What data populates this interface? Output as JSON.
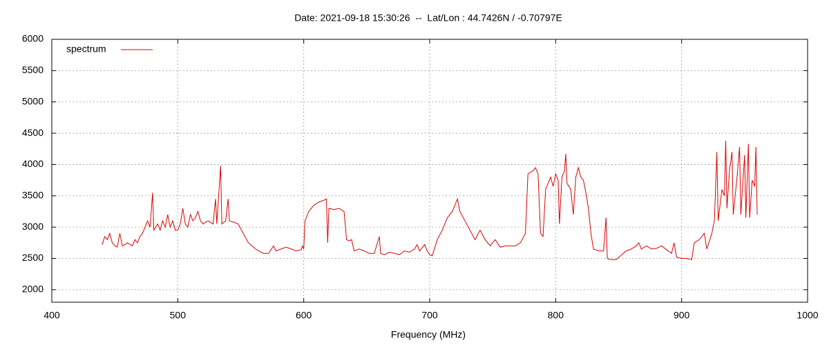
{
  "chart_data": {
    "type": "line",
    "title": "Date: 2021-09-18 15:30:26  --  Lat/Lon : 44.7426N / -0.70797E",
    "x_label": "Frequency (MHz)",
    "xlim": [
      400,
      1000
    ],
    "xticks": [
      400,
      500,
      600,
      700,
      800,
      900,
      1000
    ],
    "ylim": [
      1800,
      6000
    ],
    "yticks": [
      2000,
      2500,
      3000,
      3500,
      4000,
      4500,
      5000,
      5500,
      6000
    ],
    "grid": true,
    "legend": "top-left",
    "x": [
      440,
      442,
      444,
      446,
      448,
      450,
      452,
      454,
      456,
      458,
      460,
      464,
      466,
      468,
      470,
      472,
      474,
      476,
      478,
      480,
      481,
      484,
      486,
      488,
      490,
      492,
      494,
      496,
      498,
      500,
      502,
      504,
      506,
      508,
      510,
      512,
      514,
      516,
      518,
      520,
      524,
      528,
      530,
      531,
      534,
      535,
      538,
      540,
      541,
      544,
      548,
      552,
      556,
      560,
      564,
      568,
      572,
      576,
      578,
      582,
      586,
      590,
      594,
      598,
      599,
      600,
      601,
      604,
      608,
      612,
      616,
      618,
      619,
      620,
      624,
      628,
      632,
      634,
      636,
      638,
      640,
      644,
      648,
      652,
      656,
      660,
      661,
      664,
      668,
      672,
      676,
      680,
      684,
      688,
      690,
      692,
      696,
      698,
      700,
      702,
      706,
      710,
      714,
      718,
      720,
      722,
      724,
      728,
      732,
      736,
      740,
      744,
      748,
      752,
      756,
      760,
      764,
      768,
      772,
      776,
      778,
      782,
      784,
      786,
      788,
      790,
      792,
      794,
      796,
      798,
      800,
      802,
      803,
      805,
      807,
      808,
      809,
      812,
      814,
      816,
      818,
      820,
      822,
      824,
      826,
      828,
      830,
      834,
      838,
      840,
      841,
      844,
      848,
      852,
      856,
      860,
      864,
      866,
      868,
      872,
      876,
      880,
      884,
      888,
      892,
      894,
      896,
      900,
      904,
      908,
      910,
      914,
      918,
      920,
      924,
      926,
      928,
      929,
      932,
      934,
      935,
      936,
      938,
      940,
      941,
      944,
      946,
      947,
      950,
      951,
      953,
      954,
      956,
      958,
      959,
      960
    ],
    "series": [
      {
        "name": "spectrum",
        "color": "#dd0000",
        "values": [
          2720,
          2850,
          2800,
          2900,
          2750,
          2700,
          2680,
          2900,
          2700,
          2720,
          2750,
          2700,
          2800,
          2750,
          2850,
          2900,
          3000,
          3100,
          3000,
          3550,
          2950,
          3050,
          2950,
          3100,
          3000,
          3200,
          3000,
          3100,
          2950,
          2950,
          3050,
          3300,
          3050,
          3000,
          3200,
          3100,
          3150,
          3250,
          3100,
          3050,
          3100,
          3050,
          3450,
          3050,
          3980,
          3050,
          3100,
          3450,
          3100,
          3080,
          3050,
          2900,
          2750,
          2680,
          2620,
          2580,
          2580,
          2700,
          2620,
          2650,
          2680,
          2650,
          2620,
          2640,
          2700,
          2650,
          3100,
          3250,
          3350,
          3400,
          3430,
          3450,
          2750,
          3300,
          3280,
          3300,
          3250,
          2800,
          2780,
          2800,
          2620,
          2650,
          2620,
          2580,
          2580,
          2850,
          2580,
          2560,
          2600,
          2580,
          2560,
          2620,
          2600,
          2650,
          2720,
          2620,
          2720,
          2620,
          2560,
          2540,
          2800,
          2950,
          3150,
          3250,
          3350,
          3450,
          3250,
          3100,
          2950,
          2800,
          2950,
          2800,
          2700,
          2800,
          2680,
          2700,
          2700,
          2700,
          2750,
          2900,
          3850,
          3900,
          3950,
          3850,
          2900,
          2850,
          3600,
          3700,
          3800,
          3650,
          3850,
          3750,
          3050,
          3800,
          3900,
          4170,
          3700,
          3600,
          3200,
          3800,
          3950,
          3800,
          3750,
          3550,
          3300,
          2900,
          2650,
          2620,
          2620,
          3150,
          2500,
          2480,
          2480,
          2550,
          2620,
          2650,
          2700,
          2750,
          2650,
          2700,
          2650,
          2660,
          2700,
          2640,
          2580,
          2750,
          2520,
          2500,
          2500,
          2480,
          2750,
          2800,
          2900,
          2650,
          2900,
          3100,
          4200,
          3100,
          3600,
          3500,
          4380,
          3300,
          3900,
          4200,
          3200,
          3800,
          4280,
          3200,
          4150,
          3150,
          4330,
          3150,
          3750,
          3650,
          4280,
          3200
        ]
      }
    ]
  }
}
